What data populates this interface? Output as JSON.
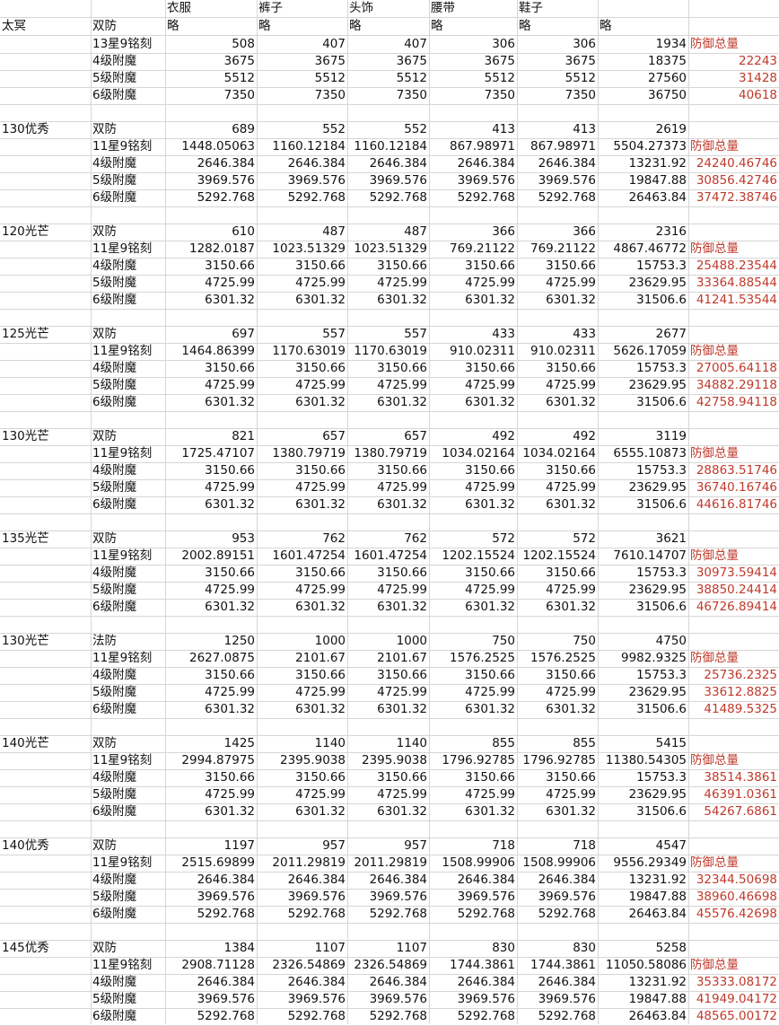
{
  "colors": {
    "red": "#c0392b",
    "grid": "#d6d6d6"
  },
  "header": {
    "title": "太冥",
    "type": "双防",
    "columns": [
      "衣服",
      "裤子",
      "头饰",
      "腰带",
      "鞋子",
      ""
    ],
    "subs": [
      "略",
      "略",
      "略",
      "略",
      "略",
      "略"
    ]
  },
  "sections": [
    {
      "label": "",
      "rows": [
        {
          "label": "13星9铭刻",
          "values": [
            "508",
            "407",
            "407",
            "306",
            "306",
            "1934"
          ],
          "extra": "防御总量"
        },
        {
          "label": "4级附魔",
          "values": [
            "3675",
            "3675",
            "3675",
            "3675",
            "3675",
            "18375"
          ],
          "extra": "22243"
        },
        {
          "label": "5级附魔",
          "values": [
            "5512",
            "5512",
            "5512",
            "5512",
            "5512",
            "27560"
          ],
          "extra": "31428"
        },
        {
          "label": "6级附魔",
          "values": [
            "7350",
            "7350",
            "7350",
            "7350",
            "7350",
            "36750"
          ],
          "extra": "40618"
        }
      ]
    },
    {
      "label": "130优秀",
      "rows": [
        {
          "label": "双防",
          "values": [
            "689",
            "552",
            "552",
            "413",
            "413",
            "2619"
          ],
          "extra": ""
        },
        {
          "label": "11星9铭刻",
          "values": [
            "1448.05063",
            "1160.12184",
            "1160.12184",
            "867.98971",
            "867.98971",
            "5504.27373"
          ],
          "extra": "防御总量"
        },
        {
          "label": "4级附魔",
          "values": [
            "2646.384",
            "2646.384",
            "2646.384",
            "2646.384",
            "2646.384",
            "13231.92"
          ],
          "extra": "24240.46746"
        },
        {
          "label": "5级附魔",
          "values": [
            "3969.576",
            "3969.576",
            "3969.576",
            "3969.576",
            "3969.576",
            "19847.88"
          ],
          "extra": "30856.42746"
        },
        {
          "label": "6级附魔",
          "values": [
            "5292.768",
            "5292.768",
            "5292.768",
            "5292.768",
            "5292.768",
            "26463.84"
          ],
          "extra": "37472.38746"
        }
      ]
    },
    {
      "label": "120光芒",
      "rows": [
        {
          "label": "双防",
          "values": [
            "610",
            "487",
            "487",
            "366",
            "366",
            "2316"
          ],
          "extra": ""
        },
        {
          "label": "11星9铭刻",
          "values": [
            "1282.0187",
            "1023.51329",
            "1023.51329",
            "769.21122",
            "769.21122",
            "4867.46772"
          ],
          "extra": "防御总量"
        },
        {
          "label": "4级附魔",
          "values": [
            "3150.66",
            "3150.66",
            "3150.66",
            "3150.66",
            "3150.66",
            "15753.3"
          ],
          "extra": "25488.23544"
        },
        {
          "label": "5级附魔",
          "values": [
            "4725.99",
            "4725.99",
            "4725.99",
            "4725.99",
            "4725.99",
            "23629.95"
          ],
          "extra": "33364.88544"
        },
        {
          "label": "6级附魔",
          "values": [
            "6301.32",
            "6301.32",
            "6301.32",
            "6301.32",
            "6301.32",
            "31506.6"
          ],
          "extra": "41241.53544"
        }
      ]
    },
    {
      "label": "125光芒",
      "rows": [
        {
          "label": "双防",
          "values": [
            "697",
            "557",
            "557",
            "433",
            "433",
            "2677"
          ],
          "extra": ""
        },
        {
          "label": "11星9铭刻",
          "values": [
            "1464.86399",
            "1170.63019",
            "1170.63019",
            "910.02311",
            "910.02311",
            "5626.17059"
          ],
          "extra": "防御总量"
        },
        {
          "label": "4级附魔",
          "values": [
            "3150.66",
            "3150.66",
            "3150.66",
            "3150.66",
            "3150.66",
            "15753.3"
          ],
          "extra": "27005.64118"
        },
        {
          "label": "5级附魔",
          "values": [
            "4725.99",
            "4725.99",
            "4725.99",
            "4725.99",
            "4725.99",
            "23629.95"
          ],
          "extra": "34882.29118"
        },
        {
          "label": "6级附魔",
          "values": [
            "6301.32",
            "6301.32",
            "6301.32",
            "6301.32",
            "6301.32",
            "31506.6"
          ],
          "extra": "42758.94118"
        }
      ]
    },
    {
      "label": "130光芒",
      "rows": [
        {
          "label": "双防",
          "values": [
            "821",
            "657",
            "657",
            "492",
            "492",
            "3119"
          ],
          "extra": ""
        },
        {
          "label": "11星9铭刻",
          "values": [
            "1725.47107",
            "1380.79719",
            "1380.79719",
            "1034.02164",
            "1034.02164",
            "6555.10873"
          ],
          "extra": "防御总量"
        },
        {
          "label": "4级附魔",
          "values": [
            "3150.66",
            "3150.66",
            "3150.66",
            "3150.66",
            "3150.66",
            "15753.3"
          ],
          "extra": "28863.51746"
        },
        {
          "label": "5级附魔",
          "values": [
            "4725.99",
            "4725.99",
            "4725.99",
            "4725.99",
            "4725.99",
            "23629.95"
          ],
          "extra": "36740.16746"
        },
        {
          "label": "6级附魔",
          "values": [
            "6301.32",
            "6301.32",
            "6301.32",
            "6301.32",
            "6301.32",
            "31506.6"
          ],
          "extra": "44616.81746"
        }
      ]
    },
    {
      "label": "135光芒",
      "rows": [
        {
          "label": "双防",
          "values": [
            "953",
            "762",
            "762",
            "572",
            "572",
            "3621"
          ],
          "extra": ""
        },
        {
          "label": "11星9铭刻",
          "values": [
            "2002.89151",
            "1601.47254",
            "1601.47254",
            "1202.15524",
            "1202.15524",
            "7610.14707"
          ],
          "extra": "防御总量"
        },
        {
          "label": "4级附魔",
          "values": [
            "3150.66",
            "3150.66",
            "3150.66",
            "3150.66",
            "3150.66",
            "15753.3"
          ],
          "extra": "30973.59414"
        },
        {
          "label": "5级附魔",
          "values": [
            "4725.99",
            "4725.99",
            "4725.99",
            "4725.99",
            "4725.99",
            "23629.95"
          ],
          "extra": "38850.24414"
        },
        {
          "label": "6级附魔",
          "values": [
            "6301.32",
            "6301.32",
            "6301.32",
            "6301.32",
            "6301.32",
            "31506.6"
          ],
          "extra": "46726.89414"
        }
      ]
    },
    {
      "label": "130光芒",
      "rows": [
        {
          "label": "法防",
          "values": [
            "1250",
            "1000",
            "1000",
            "750",
            "750",
            "4750"
          ],
          "extra": ""
        },
        {
          "label": "11星9铭刻",
          "values": [
            "2627.0875",
            "2101.67",
            "2101.67",
            "1576.2525",
            "1576.2525",
            "9982.9325"
          ],
          "extra": "防御总量"
        },
        {
          "label": "4级附魔",
          "values": [
            "3150.66",
            "3150.66",
            "3150.66",
            "3150.66",
            "3150.66",
            "15753.3"
          ],
          "extra": "25736.2325"
        },
        {
          "label": "5级附魔",
          "values": [
            "4725.99",
            "4725.99",
            "4725.99",
            "4725.99",
            "4725.99",
            "23629.95"
          ],
          "extra": "33612.8825"
        },
        {
          "label": "6级附魔",
          "values": [
            "6301.32",
            "6301.32",
            "6301.32",
            "6301.32",
            "6301.32",
            "31506.6"
          ],
          "extra": "41489.5325"
        }
      ]
    },
    {
      "label": "140光芒",
      "rows": [
        {
          "label": "双防",
          "values": [
            "1425",
            "1140",
            "1140",
            "855",
            "855",
            "5415"
          ],
          "extra": ""
        },
        {
          "label": "11星9铭刻",
          "values": [
            "2994.87975",
            "2395.9038",
            "2395.9038",
            "1796.92785",
            "1796.92785",
            "11380.54305"
          ],
          "extra": "防御总量"
        },
        {
          "label": "4级附魔",
          "values": [
            "3150.66",
            "3150.66",
            "3150.66",
            "3150.66",
            "3150.66",
            "15753.3"
          ],
          "extra": "38514.3861"
        },
        {
          "label": "5级附魔",
          "values": [
            "4725.99",
            "4725.99",
            "4725.99",
            "4725.99",
            "4725.99",
            "23629.95"
          ],
          "extra": "46391.0361"
        },
        {
          "label": "6级附魔",
          "values": [
            "6301.32",
            "6301.32",
            "6301.32",
            "6301.32",
            "6301.32",
            "31506.6"
          ],
          "extra": "54267.6861"
        }
      ]
    },
    {
      "label": "140优秀",
      "rows": [
        {
          "label": "双防",
          "values": [
            "1197",
            "957",
            "957",
            "718",
            "718",
            "4547"
          ],
          "extra": ""
        },
        {
          "label": "11星9铭刻",
          "values": [
            "2515.69899",
            "2011.29819",
            "2011.29819",
            "1508.99906",
            "1508.99906",
            "9556.29349"
          ],
          "extra": "防御总量"
        },
        {
          "label": "4级附魔",
          "values": [
            "2646.384",
            "2646.384",
            "2646.384",
            "2646.384",
            "2646.384",
            "13231.92"
          ],
          "extra": "32344.50698"
        },
        {
          "label": "5级附魔",
          "values": [
            "3969.576",
            "3969.576",
            "3969.576",
            "3969.576",
            "3969.576",
            "19847.88"
          ],
          "extra": "38960.46698"
        },
        {
          "label": "6级附魔",
          "values": [
            "5292.768",
            "5292.768",
            "5292.768",
            "5292.768",
            "5292.768",
            "26463.84"
          ],
          "extra": "45576.42698"
        }
      ]
    },
    {
      "label": "145优秀",
      "rows": [
        {
          "label": "双防",
          "values": [
            "1384",
            "1107",
            "1107",
            "830",
            "830",
            "5258"
          ],
          "extra": ""
        },
        {
          "label": "11星9铭刻",
          "values": [
            "2908.71128",
            "2326.54869",
            "2326.54869",
            "1744.3861",
            "1744.3861",
            "11050.58086"
          ],
          "extra": "防御总量"
        },
        {
          "label": "4级附魔",
          "values": [
            "2646.384",
            "2646.384",
            "2646.384",
            "2646.384",
            "2646.384",
            "13231.92"
          ],
          "extra": "35333.08172"
        },
        {
          "label": "5级附魔",
          "values": [
            "3969.576",
            "3969.576",
            "3969.576",
            "3969.576",
            "3969.576",
            "19847.88"
          ],
          "extra": "41949.04172"
        },
        {
          "label": "6级附魔",
          "values": [
            "5292.768",
            "5292.768",
            "5292.768",
            "5292.768",
            "5292.768",
            "26463.84"
          ],
          "extra": "48565.00172"
        }
      ]
    }
  ]
}
